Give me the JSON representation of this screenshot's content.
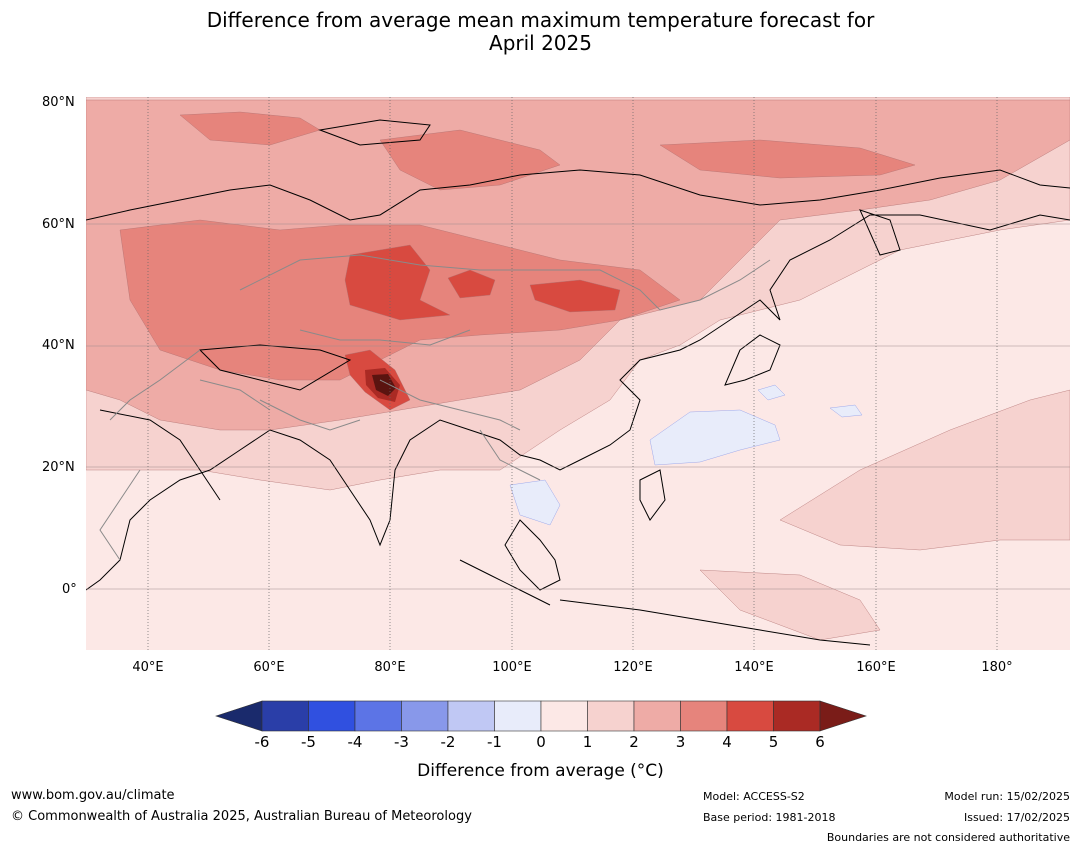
{
  "title_line1": "Difference from average mean maximum temperature forecast for",
  "title_line2": "April 2025",
  "lat_labels": [
    "80°N",
    "60°N",
    "40°N",
    "20°N",
    "0°"
  ],
  "lon_labels": [
    "40°E",
    "60°E",
    "80°E",
    "100°E",
    "120°E",
    "140°E",
    "160°E",
    "180°"
  ],
  "colorbar": {
    "labels": [
      "-6",
      "-5",
      "-4",
      "-3",
      "-2",
      "-1",
      "0",
      "1",
      "2",
      "3",
      "4",
      "5",
      "6"
    ],
    "colors": [
      "#1a2a6c",
      "#2a3ea8",
      "#3050e0",
      "#5c74e6",
      "#8898ea",
      "#c0c8f4",
      "#e8ecfa",
      "#fce8e6",
      "#f6d2cf",
      "#eeaba6",
      "#e6847c",
      "#d84a40",
      "#aa2a24",
      "#7a1c18"
    ],
    "title": "Difference from average (°C)"
  },
  "footer": {
    "website": "www.bom.gov.au/climate",
    "copyright": "© Commonwealth of Australia 2025, Australian Bureau of Meteorology",
    "model": "Model: ACCESS-S2",
    "base_period": "Base period: 1981-2018",
    "model_run": "Model run: 15/02/2025",
    "issued": "Issued: 17/02/2025",
    "disclaimer": "Boundaries are not considered authoritative"
  }
}
